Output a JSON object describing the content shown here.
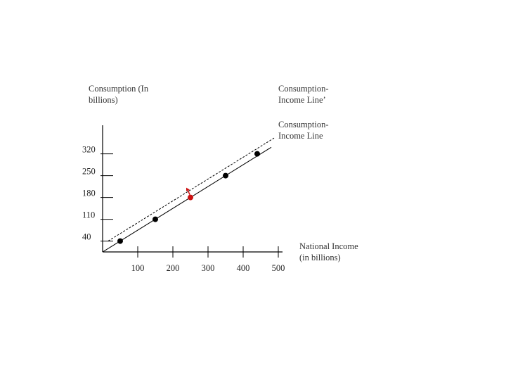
{
  "chart_data": {
    "type": "line",
    "ylabel": [
      "Consumption (In",
      "billions)"
    ],
    "xlabel": [
      "National  Income",
      "(in billions)"
    ],
    "x_ticks": [
      100,
      200,
      300,
      400,
      500
    ],
    "y_ticks": [
      40,
      110,
      180,
      250,
      320
    ],
    "series": [
      {
        "name": [
          "Consumption-",
          "Income Line"
        ],
        "style": "solid",
        "color": "#000000",
        "x": [
          50,
          150,
          350,
          440
        ],
        "y": [
          40,
          110,
          250,
          320
        ]
      },
      {
        "name": [
          "Consumption-",
          "Income Line’"
        ],
        "style": "dashed",
        "color": "#000000"
      }
    ],
    "highlight_point": {
      "x": 250,
      "y": 180,
      "color": "#cc1111"
    },
    "grid": false
  }
}
